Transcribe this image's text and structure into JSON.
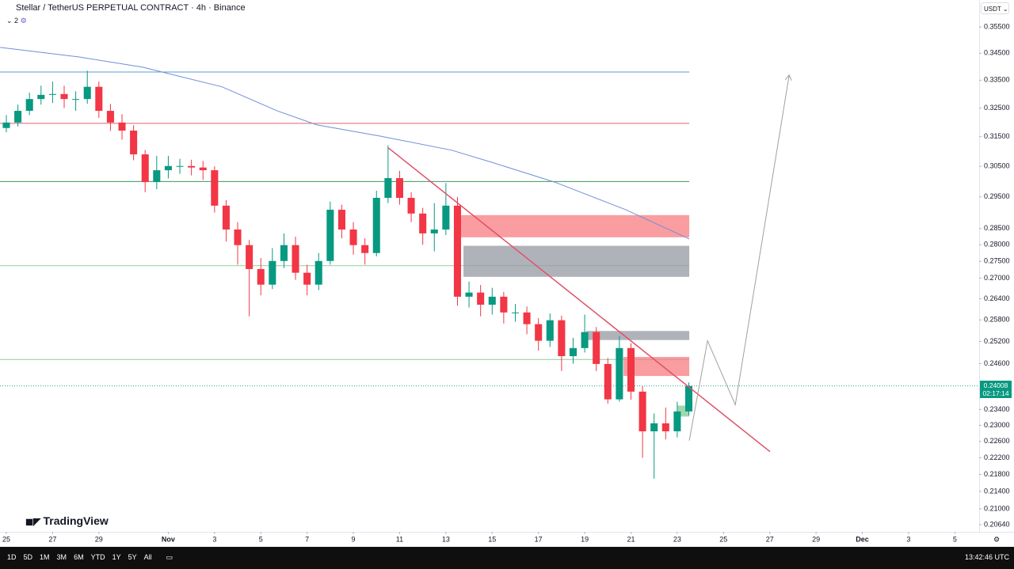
{
  "chart_data": {
    "type": "candlestick",
    "title": "Stellar / TetherUS PERPETUAL CONTRACT · 4h · Binance",
    "badge": "2",
    "currency": "USDT",
    "brand": "TradingView",
    "timeframes": [
      "1D",
      "5D",
      "1M",
      "3M",
      "6M",
      "YTD",
      "1Y",
      "5Y",
      "All"
    ],
    "clock": "13:42:46 UTC",
    "log": true,
    "up_color": "#089981",
    "down_color": "#f23645",
    "ylim": [
      0.2048,
      0.3656
    ],
    "yticks": [
      {
        "value": 0.355,
        "label": "0.35500"
      },
      {
        "value": 0.345,
        "label": "0.34500"
      },
      {
        "value": 0.335,
        "label": "0.33500"
      },
      {
        "value": 0.325,
        "label": "0.32500"
      },
      {
        "value": 0.315,
        "label": "0.31500"
      },
      {
        "value": 0.305,
        "label": "0.30500"
      },
      {
        "value": 0.295,
        "label": "0.29500"
      },
      {
        "value": 0.285,
        "label": "0.28500"
      },
      {
        "value": 0.28,
        "label": "0.28000"
      },
      {
        "value": 0.275,
        "label": "0.27500"
      },
      {
        "value": 0.27,
        "label": "0.27000"
      },
      {
        "value": 0.264,
        "label": "0.26400"
      },
      {
        "value": 0.258,
        "label": "0.25800"
      },
      {
        "value": 0.252,
        "label": "0.25200"
      },
      {
        "value": 0.246,
        "label": "0.24600"
      },
      {
        "value": 0.234,
        "label": "0.23400"
      },
      {
        "value": 0.23,
        "label": "0.23000"
      },
      {
        "value": 0.226,
        "label": "0.22600"
      },
      {
        "value": 0.222,
        "label": "0.22200"
      },
      {
        "value": 0.218,
        "label": "0.21800"
      },
      {
        "value": 0.214,
        "label": "0.21400"
      },
      {
        "value": 0.21,
        "label": "0.21000"
      },
      {
        "value": 0.2064,
        "label": "0.20640"
      }
    ],
    "xlim": [
      -0.274,
      42.05
    ],
    "xticks": [
      {
        "value": 0,
        "label": "25"
      },
      {
        "value": 2,
        "label": "27"
      },
      {
        "value": 4,
        "label": "29"
      },
      {
        "value": 7,
        "label": "Nov"
      },
      {
        "value": 9,
        "label": "3"
      },
      {
        "value": 11,
        "label": "5"
      },
      {
        "value": 13,
        "label": "7"
      },
      {
        "value": 15,
        "label": "9"
      },
      {
        "value": 17,
        "label": "11"
      },
      {
        "value": 19,
        "label": "13"
      },
      {
        "value": 21,
        "label": "15"
      },
      {
        "value": 23,
        "label": "17"
      },
      {
        "value": 25,
        "label": "19"
      },
      {
        "value": 27,
        "label": "21"
      },
      {
        "value": 29,
        "label": "23"
      },
      {
        "value": 31,
        "label": "25"
      },
      {
        "value": 33,
        "label": "27"
      },
      {
        "value": 35,
        "label": "29"
      },
      {
        "value": 37,
        "label": "Dec"
      },
      {
        "value": 39,
        "label": "3"
      },
      {
        "value": 41,
        "label": "5"
      }
    ],
    "x": [
      0,
      0.5,
      1,
      1.5,
      2,
      2.5,
      3,
      3.5,
      4,
      4.5,
      5,
      5.5,
      6,
      6.5,
      7,
      7.5,
      8,
      8.5,
      9,
      9.5,
      10,
      10.5,
      11,
      11.5,
      12,
      12.5,
      13,
      13.5,
      14,
      14.5,
      15,
      15.5,
      16,
      16.5,
      17,
      17.5,
      18,
      18.5,
      19,
      19.5,
      20,
      20.5,
      21,
      21.5,
      22,
      22.5,
      23,
      23.5,
      24,
      24.5,
      25,
      25.5,
      26,
      26.5,
      27,
      27.5,
      28,
      28.5,
      29,
      29.5
    ],
    "open": [
      0.318,
      0.3199,
      0.324,
      0.3282,
      0.3297,
      0.33,
      0.3282,
      0.3282,
      0.3326,
      0.324,
      0.3199,
      0.3171,
      0.309,
      0.2998,
      0.3037,
      0.3051,
      0.3051,
      0.3046,
      0.3037,
      0.2922,
      0.2847,
      0.2799,
      0.2727,
      0.2681,
      0.2751,
      0.2799,
      0.2716,
      0.2681,
      0.2751,
      0.2909,
      0.2847,
      0.2799,
      0.2775,
      0.2947,
      0.3011,
      0.2947,
      0.2897,
      0.2835,
      0.2847,
      0.2922,
      0.2646,
      0.2658,
      0.2623,
      0.2646,
      0.2601,
      0.2601,
      0.2568,
      0.2522,
      0.2579,
      0.248,
      0.2502,
      0.2546,
      0.2459,
      0.2366,
      0.2502,
      0.2386,
      0.2285,
      0.2305,
      0.2285,
      0.2335
    ],
    "high": [
      0.3225,
      0.3262,
      0.3305,
      0.333,
      0.3345,
      0.333,
      0.331,
      0.3385,
      0.3345,
      0.3265,
      0.3228,
      0.319,
      0.3105,
      0.3085,
      0.3085,
      0.3075,
      0.3072,
      0.3068,
      0.305,
      0.294,
      0.287,
      0.2815,
      0.276,
      0.279,
      0.2835,
      0.2825,
      0.274,
      0.2775,
      0.2935,
      0.2925,
      0.287,
      0.282,
      0.297,
      0.312,
      0.3035,
      0.2965,
      0.2915,
      0.293,
      0.2995,
      0.295,
      0.269,
      0.268,
      0.2672,
      0.266,
      0.2625,
      0.2618,
      0.2585,
      0.2598,
      0.2592,
      0.253,
      0.2595,
      0.256,
      0.2475,
      0.2535,
      0.2515,
      0.24,
      0.233,
      0.2345,
      0.236,
      0.241
    ],
    "low": [
      0.3165,
      0.3185,
      0.3225,
      0.3262,
      0.3268,
      0.325,
      0.324,
      0.3265,
      0.3215,
      0.317,
      0.314,
      0.307,
      0.2965,
      0.2975,
      0.301,
      0.3025,
      0.302,
      0.3005,
      0.29,
      0.281,
      0.274,
      0.259,
      0.265,
      0.2668,
      0.273,
      0.2695,
      0.265,
      0.2665,
      0.274,
      0.282,
      0.277,
      0.274,
      0.2765,
      0.293,
      0.2925,
      0.287,
      0.28,
      0.278,
      0.283,
      0.262,
      0.2615,
      0.259,
      0.2595,
      0.257,
      0.2575,
      0.254,
      0.2495,
      0.2505,
      0.244,
      0.246,
      0.249,
      0.244,
      0.2355,
      0.236,
      0.2365,
      0.222,
      0.217,
      0.2265,
      0.227,
      0.2325
    ],
    "close": [
      0.3199,
      0.324,
      0.3282,
      0.3297,
      0.33,
      0.3282,
      0.3282,
      0.3326,
      0.324,
      0.3199,
      0.3171,
      0.309,
      0.2998,
      0.3037,
      0.3051,
      0.3051,
      0.3046,
      0.3037,
      0.2922,
      0.2847,
      0.2799,
      0.2727,
      0.2681,
      0.2751,
      0.2799,
      0.2716,
      0.2681,
      0.2751,
      0.2909,
      0.2847,
      0.2799,
      0.2775,
      0.2947,
      0.3011,
      0.2947,
      0.2897,
      0.2835,
      0.2847,
      0.2922,
      0.2646,
      0.2658,
      0.2623,
      0.2646,
      0.2601,
      0.2601,
      0.2568,
      0.2522,
      0.2579,
      0.248,
      0.2502,
      0.2546,
      0.2459,
      0.2366,
      0.2502,
      0.2386,
      0.2285,
      0.2305,
      0.2285,
      0.2335,
      0.24008
    ],
    "last_price": {
      "value": 0.24008,
      "label": "0.24008",
      "countdown": "02:17:14",
      "color": "#089981"
    },
    "levels": [
      {
        "value": 0.338,
        "color": "#5b9bd5"
      },
      {
        "value": 0.3196,
        "color": "#e06070"
      },
      {
        "value": 0.3,
        "color": "#3a9a5a"
      },
      {
        "value": 0.2737,
        "color": "#8fd19e"
      },
      {
        "value": 0.2471,
        "color": "#8fc79a"
      }
    ],
    "ma": {
      "color": "#6f8fd8",
      "x": [
        -0.27,
        3.15,
        5.89,
        9.32,
        11.71,
        13.42,
        16.16,
        19.25,
        20.96,
        23.7,
        26.78,
        29.52
      ],
      "values": [
        0.3472,
        0.3436,
        0.3398,
        0.3326,
        0.324,
        0.3191,
        0.3152,
        0.3104,
        0.3064,
        0.2998,
        0.2909,
        0.2818
      ]
    },
    "zones": [
      {
        "x": [
          19.52,
          29.52
        ],
        "y": [
          0.2823,
          0.2892
        ],
        "color": "#f77c80"
      },
      {
        "x": [
          19.76,
          29.52
        ],
        "y": [
          0.2704,
          0.2797
        ],
        "color": "#9598a1"
      },
      {
        "x": [
          25.07,
          29.52
        ],
        "y": [
          0.2524,
          0.2549
        ],
        "color": "#9598a1"
      },
      {
        "x": [
          26.68,
          29.52
        ],
        "y": [
          0.2427,
          0.2478
        ],
        "color": "#f77c80"
      },
      {
        "x": [
          29.01,
          29.52
        ],
        "y": [
          0.2322,
          0.235
        ],
        "color": "#81c995"
      }
    ],
    "trendline": {
      "color": "#e0506a",
      "x": [
        16.51,
        33.01
      ],
      "values": [
        0.3112,
        0.2235
      ]
    },
    "projection": {
      "color": "#a0a0a0",
      "x": [
        29.52,
        30.31,
        31.51,
        33.84
      ],
      "values": [
        0.2262,
        0.2522,
        0.2352,
        0.3369
      ]
    }
  }
}
